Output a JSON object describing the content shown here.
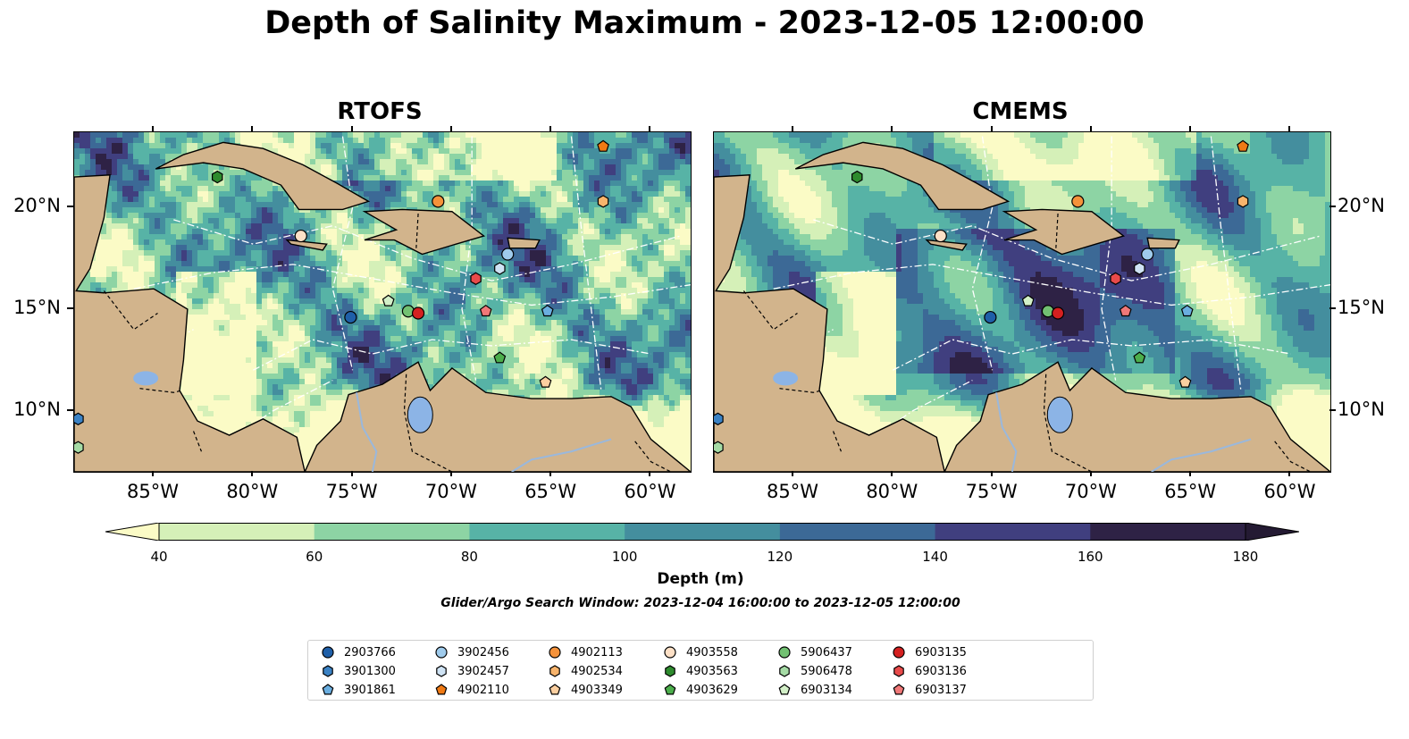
{
  "title": "Depth of Salinity Maximum - 2023-12-05 12:00:00",
  "panels": [
    {
      "title": "RTOFS"
    },
    {
      "title": "CMEMS"
    }
  ],
  "axes": {
    "lon_labels": [
      "85°W",
      "80°W",
      "75°W",
      "70°W",
      "65°W",
      "60°W"
    ],
    "lon_values": [
      -85,
      -80,
      -75,
      -70,
      -65,
      -60
    ],
    "lat_labels": [
      "20°N",
      "15°N",
      "10°N"
    ],
    "lat_values": [
      20,
      15,
      10
    ],
    "lon_range": [
      -89,
      -58
    ],
    "lat_range": [
      7,
      23.7
    ]
  },
  "colorbar": {
    "label": "Depth (m)",
    "ticks": [
      "40",
      "60",
      "80",
      "100",
      "120",
      "140",
      "160",
      "180"
    ],
    "tick_values": [
      40,
      60,
      80,
      100,
      120,
      140,
      160,
      180
    ],
    "colors": [
      "#fbfbc6",
      "#d5f0b8",
      "#8dd4a4",
      "#57b3a6",
      "#448e9e",
      "#3c6996",
      "#403f7f",
      "#2e2245",
      "#241a33"
    ],
    "extend": "both"
  },
  "search_window": "Glider/Argo Search Window: 2023-12-04 16:00:00 to 2023-12-05 12:00:00",
  "colors": {
    "land": "#d2b48c",
    "lake": "#8cb4e6",
    "river": "#9ab8dc"
  },
  "legend": [
    {
      "id": "2903766",
      "color": "#1f5fa8",
      "marker": "circle"
    },
    {
      "id": "3901300",
      "color": "#3b82c4",
      "marker": "hexagon"
    },
    {
      "id": "3901861",
      "color": "#6aaee0",
      "marker": "pentagon"
    },
    {
      "id": "3902456",
      "color": "#9fcbec",
      "marker": "circle"
    },
    {
      "id": "3902457",
      "color": "#cfe3f4",
      "marker": "hexagon"
    },
    {
      "id": "4902110",
      "color": "#f07a14",
      "marker": "pentagon"
    },
    {
      "id": "4902113",
      "color": "#f5923a",
      "marker": "circle"
    },
    {
      "id": "4902534",
      "color": "#f8b46c",
      "marker": "hexagon"
    },
    {
      "id": "4903349",
      "color": "#fbcfa0",
      "marker": "pentagon"
    },
    {
      "id": "4903558",
      "color": "#fde0c6",
      "marker": "circle"
    },
    {
      "id": "4903563",
      "color": "#2e8b2e",
      "marker": "hexagon"
    },
    {
      "id": "4903629",
      "color": "#4cae4c",
      "marker": "pentagon"
    },
    {
      "id": "5906437",
      "color": "#72c172",
      "marker": "circle"
    },
    {
      "id": "5906478",
      "color": "#a5dba5",
      "marker": "hexagon"
    },
    {
      "id": "6903134",
      "color": "#d3f0c8",
      "marker": "pentagon"
    },
    {
      "id": "6903135",
      "color": "#d42020",
      "marker": "circle"
    },
    {
      "id": "6903136",
      "color": "#e84a4a",
      "marker": "hexagon"
    },
    {
      "id": "6903137",
      "color": "#f07878",
      "marker": "pentagon"
    }
  ],
  "markers": [
    {
      "id": "4903563",
      "lon": -81.8,
      "lat": 21.5
    },
    {
      "id": "4902110",
      "lon": -62.4,
      "lat": 23.0
    },
    {
      "id": "4902113",
      "lon": -70.7,
      "lat": 20.3
    },
    {
      "id": "4902534",
      "lon": -62.4,
      "lat": 20.3
    },
    {
      "id": "4903558",
      "lon": -77.6,
      "lat": 18.6
    },
    {
      "id": "3902456",
      "lon": -67.2,
      "lat": 17.7
    },
    {
      "id": "3902457",
      "lon": -67.6,
      "lat": 17.0
    },
    {
      "id": "6903136",
      "lon": -68.8,
      "lat": 16.5
    },
    {
      "id": "6903134",
      "lon": -73.2,
      "lat": 15.4
    },
    {
      "id": "5906437",
      "lon": -72.2,
      "lat": 14.9
    },
    {
      "id": "6903135",
      "lon": -71.7,
      "lat": 14.8
    },
    {
      "id": "6903137",
      "lon": -68.3,
      "lat": 14.9
    },
    {
      "id": "3901861",
      "lon": -65.2,
      "lat": 14.9
    },
    {
      "id": "2903766",
      "lon": -75.1,
      "lat": 14.6
    },
    {
      "id": "4903629",
      "lon": -67.6,
      "lat": 12.6
    },
    {
      "id": "4903349",
      "lon": -65.3,
      "lat": 11.4
    },
    {
      "id": "3901300",
      "lon": -88.8,
      "lat": 9.6
    },
    {
      "id": "5906478",
      "lon": -88.8,
      "lat": 8.2
    }
  ]
}
